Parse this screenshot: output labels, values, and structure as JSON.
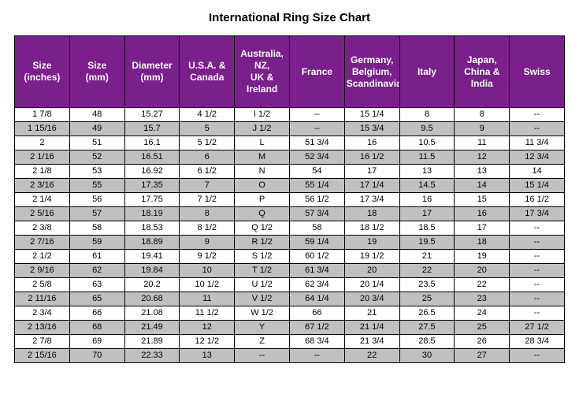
{
  "title": "International Ring Size Chart",
  "header_bg": "#7a1f8c",
  "stripe_color": "#c0c0c0",
  "columns": [
    "Size (inches)",
    "Size (mm)",
    "Diameter (mm)",
    "U.S.A. & Canada",
    "Australia, NZ, UK & Ireland",
    "France",
    "Germany, Belgium, Scandinavia",
    "Italy",
    "Japan, China & India",
    "Swiss"
  ],
  "rows": [
    [
      "1  7/8",
      "48",
      "15.27",
      "4  1/2",
      "I  1/2",
      "--",
      "15 1/4",
      "8",
      "8",
      "--"
    ],
    [
      "1 15/16",
      "49",
      "15.7",
      "5",
      "J  1/2",
      "--",
      "15 3/4",
      "9.5",
      "9",
      "--"
    ],
    [
      "2",
      "51",
      "16.1",
      "5  1/2",
      "L",
      "51 3/4",
      "16",
      "10.5",
      "11",
      "11 3/4"
    ],
    [
      "2  1/16",
      "52",
      "16.51",
      "6",
      "M",
      "52 3/4",
      "16 1/2",
      "11.5",
      "12",
      "12 3/4"
    ],
    [
      "2  1/8",
      "53",
      "16.92",
      "6  1/2",
      "N",
      "54",
      "17",
      "13",
      "13",
      "14"
    ],
    [
      "2  3/16",
      "55",
      "17.35",
      "7",
      "O",
      "55 1/4",
      "17 1/4",
      "14.5",
      "14",
      "15 1/4"
    ],
    [
      "2  1/4",
      "56",
      "17.75",
      "7  1/2",
      "P",
      "56 1/2",
      "17 3/4",
      "16",
      "15",
      "16 1/2"
    ],
    [
      "2  5/16",
      "57",
      "18.19",
      "8",
      "Q",
      "57 3/4",
      "18",
      "17",
      "16",
      "17 3/4"
    ],
    [
      "2  3/8",
      "58",
      "18.53",
      "8  1/2",
      "Q  1/2",
      "58",
      "18 1/2",
      "18.5",
      "17",
      "--"
    ],
    [
      "2  7/16",
      "59",
      "18.89",
      "9",
      "R  1/2",
      "59 1/4",
      "19",
      "19.5",
      "18",
      "--"
    ],
    [
      "2  1/2",
      "61",
      "19.41",
      "9  1/2",
      "S  1/2",
      "60 1/2",
      "19 1/2",
      "21",
      "19",
      "--"
    ],
    [
      "2  9/16",
      "62",
      "19.84",
      "10",
      "T  1/2",
      "61 3/4",
      "20",
      "22",
      "20",
      "--"
    ],
    [
      "2  5/8",
      "63",
      "20.2",
      "10 1/2",
      "U  1/2",
      "62 3/4",
      "20 1/4",
      "23.5",
      "22",
      "--"
    ],
    [
      "2 11/16",
      "65",
      "20.68",
      "11",
      "V  1/2",
      "64 1/4",
      "20 3/4",
      "25",
      "23",
      "--"
    ],
    [
      "2  3/4",
      "66",
      "21.08",
      "11 1/2",
      "W  1/2",
      "66",
      "21",
      "26.5",
      "24",
      "--"
    ],
    [
      "2 13/16",
      "68",
      "21.49",
      "12",
      "Y",
      "67 1/2",
      "21 1/4",
      "27.5",
      "25",
      "27 1/2"
    ],
    [
      "2  7/8",
      "69",
      "21.89",
      "12 1/2",
      "Z",
      "68 3/4",
      "21 3/4",
      "28.5",
      "26",
      "28 3/4"
    ],
    [
      "2 15/16",
      "70",
      "22.33",
      "13",
      "--",
      "--",
      "22",
      "30",
      "27",
      "--"
    ]
  ]
}
